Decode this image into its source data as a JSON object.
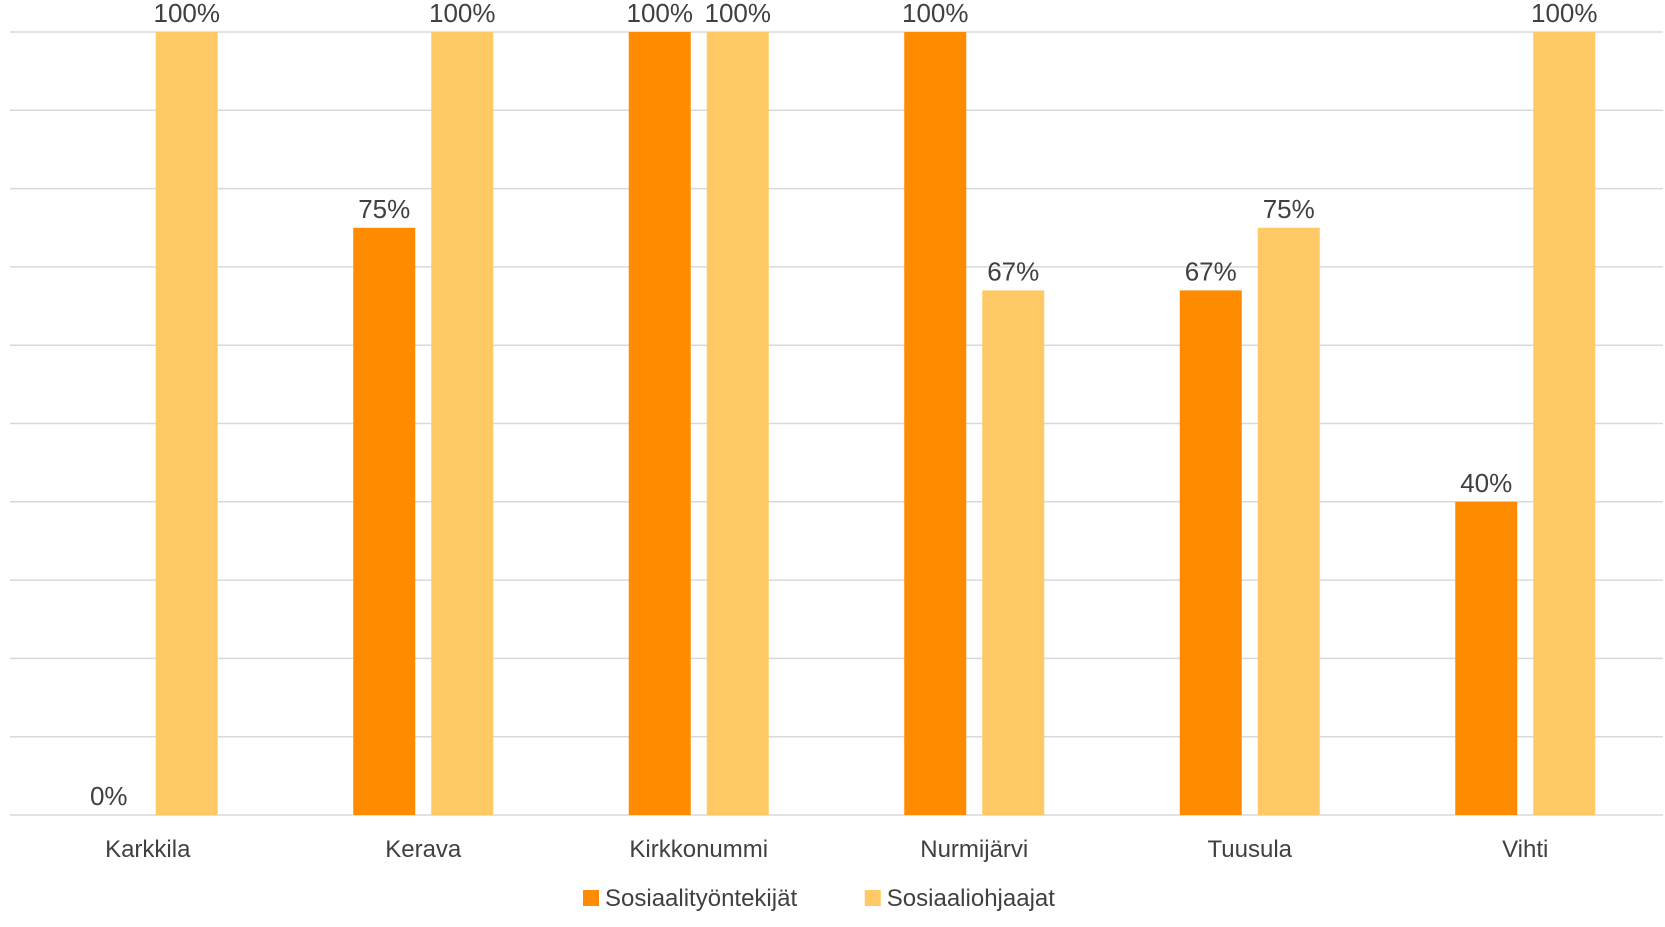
{
  "chart_data": {
    "type": "bar",
    "categories": [
      "Karkkila",
      "Kerava",
      "Kirkkonummi",
      "Nurmijärvi",
      "Tuusula",
      "Vihti"
    ],
    "series": [
      {
        "name": "Sosiaalityöntekijät",
        "color": "#ff8c00",
        "values": [
          0,
          75,
          100,
          100,
          67,
          40
        ],
        "labels": [
          "0%",
          "75%",
          "100%",
          "100%",
          "67%",
          "40%"
        ]
      },
      {
        "name": "Sosiaaliohjaajat",
        "color": "#ffca66",
        "values": [
          100,
          100,
          100,
          67,
          75,
          100
        ],
        "labels": [
          "100%",
          "100%",
          "100%",
          "67%",
          "75%",
          "100%"
        ]
      }
    ],
    "ylim": [
      0,
      100
    ],
    "grid": true,
    "legend": "bottom-center",
    "data_labels": true
  }
}
